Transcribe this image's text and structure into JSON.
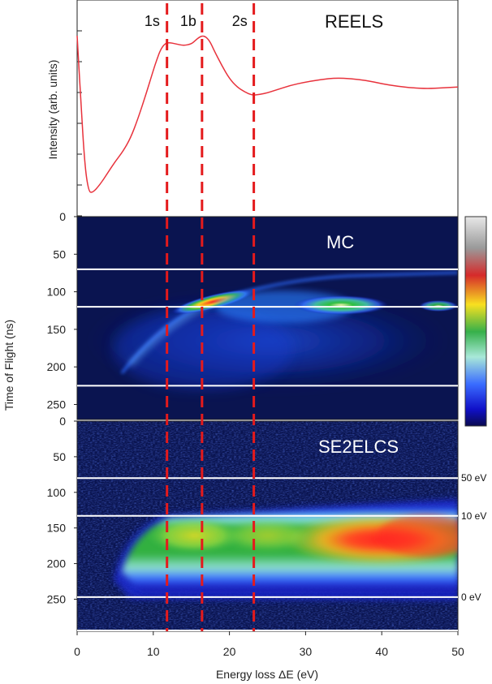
{
  "chart_data": [
    {
      "type": "line",
      "title": "REELS",
      "ylabel": "Intensity (arb. units)",
      "xlabel": "",
      "xlim": [
        0,
        50
      ],
      "x": [
        0,
        0.5,
        1,
        1.5,
        2,
        3,
        4,
        5,
        6,
        7,
        8,
        9,
        10,
        10.5,
        11,
        11.5,
        12,
        13,
        14,
        15,
        15.5,
        16,
        16.5,
        17,
        17.5,
        18,
        19,
        20,
        21,
        22,
        23,
        24,
        25,
        26,
        28,
        30,
        32,
        34,
        36,
        38,
        40,
        42,
        44,
        46,
        48,
        50
      ],
      "y": [
        1.0,
        0.6,
        0.22,
        0.06,
        0.05,
        0.1,
        0.17,
        0.24,
        0.3,
        0.38,
        0.5,
        0.64,
        0.79,
        0.86,
        0.92,
        0.95,
        0.96,
        0.95,
        0.94,
        0.95,
        0.97,
        0.99,
        1.0,
        0.99,
        0.96,
        0.91,
        0.82,
        0.74,
        0.69,
        0.66,
        0.64,
        0.645,
        0.655,
        0.67,
        0.7,
        0.72,
        0.735,
        0.745,
        0.74,
        0.73,
        0.71,
        0.695,
        0.685,
        0.68,
        0.685,
        0.69
      ],
      "color": "#e8323c",
      "peak_labels": [
        {
          "label": "1s",
          "x": 11.5
        },
        {
          "label": "1b",
          "x": 16.3
        },
        {
          "label": "2s",
          "x": 23.0
        }
      ]
    },
    {
      "type": "heatmap",
      "title": "MC",
      "ylabel": "Time of Flight (ns)",
      "xlim": [
        0,
        50
      ],
      "ylim": [
        0,
        270
      ],
      "yticks": [
        0,
        50,
        100,
        150,
        200,
        250
      ],
      "white_lines_ns": [
        70,
        120,
        225
      ]
    },
    {
      "type": "heatmap",
      "title": "SE2ELCS",
      "xlabel": "Energy loss ΔE (eV)",
      "xlim": [
        0,
        50
      ],
      "ylim": [
        0,
        295
      ],
      "yticks": [
        0,
        50,
        100,
        150,
        200,
        250
      ],
      "xticks": [
        0,
        10,
        20,
        30,
        40,
        50
      ],
      "white_lines_ns": [
        80,
        133,
        247,
        295
      ],
      "energy_labels": [
        {
          "label": "50 eV",
          "y_ns": 80
        },
        {
          "label": "10 eV",
          "y_ns": 133
        },
        {
          "label": "0 eV",
          "y_ns": 247
        }
      ]
    }
  ],
  "shared": {
    "xlabel": "Energy loss ΔE (eV)",
    "ylabel_tof": "Time of Flight (ns)",
    "dashed_lines_ev": [
      11.8,
      16.4,
      23.2
    ],
    "dashed_color": "#e41a1c"
  },
  "colorbar": {
    "colors": [
      "#dcdcdc",
      "#c93030",
      "#f0342a",
      "#f8b81f",
      "#a8e03a",
      "#3fbf5a",
      "#9fe0d0",
      "#3f7bff",
      "#1b1bd6",
      "#0b0b5e"
    ]
  }
}
